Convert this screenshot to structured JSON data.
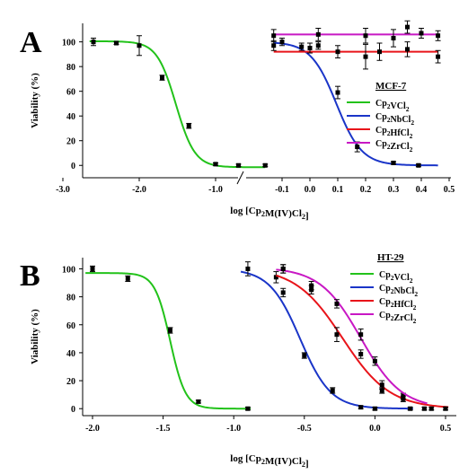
{
  "chart_data": [
    {
      "panel_label": "A",
      "type": "scatter",
      "title": "MCF-7",
      "xlabel": "log [Cp2M(IV)Cl2]",
      "ylabel": "Viability (%)",
      "x_ticks_left": [
        "-3.0",
        "-2.0",
        "-1.0"
      ],
      "x_ticks_right": [
        "-0.1",
        "0.0",
        "0.1",
        "0.2",
        "0.3",
        "0.4",
        "0.5"
      ],
      "y_ticks": [
        "0",
        "20",
        "40",
        "60",
        "80",
        "100"
      ],
      "ylim": [
        -10,
        115
      ],
      "axis_break": true,
      "legend_position": "right",
      "series": [
        {
          "name": "Cp2VCl2",
          "color": "#22c21a",
          "segment": "left",
          "x": [
            -2.6,
            -2.3,
            -2.0,
            -1.7,
            -1.35,
            -1.0,
            -0.7,
            -0.35
          ],
          "y": [
            100,
            99,
            97,
            71,
            32,
            1,
            0,
            0
          ],
          "err": [
            3,
            1,
            8,
            2,
            2,
            1,
            1,
            1
          ],
          "fit": {
            "top": 100.5,
            "bottom": -1.5,
            "log_ic50": -1.52,
            "hill": 3.5
          }
        },
        {
          "name": "Cp2NbCl2",
          "color": "#1a35c8",
          "segment": "right",
          "x": [
            -0.1,
            -0.03,
            0.03,
            0.1,
            0.17,
            0.3,
            0.39
          ],
          "y": [
            100,
            96,
            97,
            59,
            15,
            2,
            0
          ],
          "err": [
            3,
            3,
            3,
            5,
            4,
            1,
            1
          ],
          "fit": {
            "top": 100,
            "bottom": 0,
            "log_ic50": 0.095,
            "hill": 9.5
          }
        },
        {
          "name": "Cp2HfCl2",
          "color": "#e8141a",
          "segment": "right",
          "x": [
            -0.13,
            0.0,
            0.1,
            0.2,
            0.25,
            0.35,
            0.46
          ],
          "y": [
            97,
            95,
            92,
            88,
            92,
            94,
            88
          ],
          "err": [
            4,
            4,
            5,
            10,
            7,
            6,
            5
          ],
          "fit": {
            "level": 92
          }
        },
        {
          "name": "Cp2ZrCl2",
          "color": "#c818c4",
          "segment": "right",
          "x": [
            -0.13,
            0.03,
            0.2,
            0.3,
            0.35,
            0.4,
            0.46
          ],
          "y": [
            105,
            106,
            105,
            103,
            112,
            107,
            105
          ],
          "err": [
            5,
            5,
            6,
            7,
            5,
            4,
            4
          ],
          "fit": {
            "level": 106
          }
        }
      ]
    },
    {
      "panel_label": "B",
      "type": "scatter",
      "title": "HT-29",
      "xlabel": "log [Cp2M(IV)Cl2]",
      "ylabel": "Viability (%)",
      "x_ticks": [
        "-2.0",
        "-1.5",
        "-1.0",
        "-0.5",
        "0.0",
        "0.5"
      ],
      "y_ticks": [
        "0",
        "20",
        "40",
        "60",
        "80",
        "100"
      ],
      "xlim": [
        -2.05,
        0.52
      ],
      "ylim": [
        -5,
        108
      ],
      "legend_position": "right",
      "series": [
        {
          "name": "Cp2VCl2",
          "color": "#22c21a",
          "x": [
            -2.0,
            -1.75,
            -1.45,
            -1.25,
            -0.9
          ],
          "y": [
            100,
            93,
            56,
            5,
            0
          ],
          "err": [
            2,
            2,
            2,
            1,
            1
          ],
          "fit": {
            "top": 97,
            "bottom": 0,
            "log_ic50": -1.45,
            "hill": 8
          }
        },
        {
          "name": "Cp2NbCl2",
          "color": "#1a35c8",
          "x": [
            -0.9,
            -0.7,
            -0.65,
            -0.5,
            -0.3,
            -0.1,
            0.0,
            0.25
          ],
          "y": [
            100,
            94,
            83,
            38,
            13,
            1,
            0,
            0
          ],
          "err": [
            5,
            4,
            3,
            2,
            2,
            1,
            1,
            1
          ],
          "fit": {
            "top": 100,
            "bottom": 0,
            "log_ic50": -0.53,
            "hill": 4
          }
        },
        {
          "name": "Cp2HfCl2",
          "color": "#e8141a",
          "x": [
            -0.65,
            -0.45,
            -0.27,
            -0.1,
            0.05,
            0.2,
            0.4,
            0.5
          ],
          "y": [
            100,
            88,
            53,
            39,
            17,
            9,
            0,
            0
          ],
          "err": [
            3,
            3,
            5,
            3,
            3,
            2,
            1,
            1
          ],
          "fit": {
            "top": 101,
            "bottom": 0,
            "log_ic50": -0.23,
            "hill": 2.6
          }
        },
        {
          "name": "Cp2ZrCl2",
          "color": "#c818c4",
          "x": [
            -0.65,
            -0.45,
            -0.27,
            -0.1,
            0.0,
            0.05,
            0.2,
            0.35
          ],
          "y": [
            100,
            85,
            75,
            53,
            34,
            13,
            7,
            0
          ],
          "err": [
            3,
            3,
            3,
            4,
            3,
            2,
            2,
            1
          ],
          "fit": {
            "top": 101,
            "bottom": 0,
            "log_ic50": -0.1,
            "hill": 3
          }
        }
      ]
    }
  ]
}
